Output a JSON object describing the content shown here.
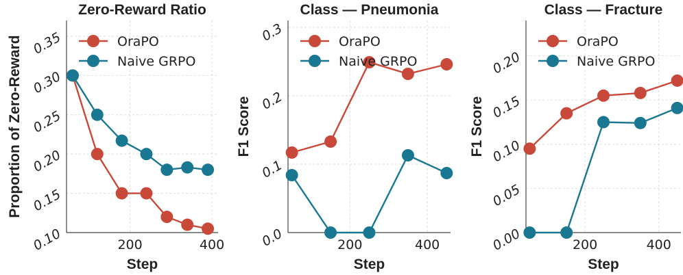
{
  "chart_data": [
    {
      "type": "line",
      "title": "Zero-Reward Ratio",
      "xlabel": "Step",
      "ylabel": "Proportion of Zero-Reward",
      "xlim": [
        45,
        415
      ],
      "ylim": [
        0.1,
        0.37
      ],
      "xticks": [
        200,
        400
      ],
      "yticks": [
        0.1,
        0.15,
        0.2,
        0.25,
        0.3,
        0.35
      ],
      "ytick_labels": [
        "0.10",
        "0.15",
        "0.20",
        "0.25",
        "0.30",
        "0.35"
      ],
      "grid": true,
      "legend_position": "top-left",
      "series": [
        {
          "name": "OraPO",
          "color": "#c8493a",
          "x": [
            60,
            120,
            180,
            240,
            290,
            340,
            390
          ],
          "y": [
            0.3,
            0.2,
            0.15,
            0.15,
            0.12,
            0.11,
            0.105
          ]
        },
        {
          "name": "Naive GRPO",
          "color": "#1a7791",
          "x": [
            60,
            120,
            180,
            240,
            290,
            340,
            390
          ],
          "y": [
            0.3,
            0.25,
            0.217,
            0.2,
            0.18,
            0.183,
            0.18
          ]
        }
      ]
    },
    {
      "type": "line",
      "title": "Class — Pneumonia",
      "xlabel": "Step",
      "ylabel": "F1 Score",
      "xlim": [
        40,
        460
      ],
      "ylim": [
        0.0,
        0.31
      ],
      "xticks": [
        200,
        400
      ],
      "yticks": [
        0.0,
        0.1,
        0.2,
        0.3
      ],
      "ytick_labels": [
        "0.0",
        "0.1",
        "0.2",
        "0.3"
      ],
      "grid": true,
      "legend_position": "top-left",
      "series": [
        {
          "name": "OraPO",
          "color": "#c8493a",
          "x": [
            50,
            150,
            250,
            350,
            450
          ],
          "y": [
            0.117,
            0.133,
            0.249,
            0.232,
            0.246
          ]
        },
        {
          "name": "Naive GRPO",
          "color": "#1a7791",
          "x": [
            50,
            150,
            250,
            350,
            450
          ],
          "y": [
            0.084,
            0.0,
            0.0,
            0.113,
            0.087
          ]
        }
      ]
    },
    {
      "type": "line",
      "title": "Class — Fracture",
      "xlabel": "Step",
      "ylabel": "F1 Score",
      "xlim": [
        40,
        460
      ],
      "ylim": [
        0.0,
        0.24
      ],
      "xticks": [
        200,
        400
      ],
      "yticks": [
        0.0,
        0.05,
        0.1,
        0.15,
        0.2
      ],
      "ytick_labels": [
        "0.00",
        "0.05",
        "0.10",
        "0.15",
        "0.20"
      ],
      "grid": true,
      "legend_position": "top-left",
      "series": [
        {
          "name": "OraPO",
          "color": "#c8493a",
          "x": [
            50,
            150,
            250,
            350,
            450
          ],
          "y": [
            0.095,
            0.135,
            0.155,
            0.158,
            0.172
          ]
        },
        {
          "name": "Naive GRPO",
          "color": "#1a7791",
          "x": [
            50,
            150,
            250,
            350,
            450
          ],
          "y": [
            0.0,
            0.0,
            0.125,
            0.124,
            0.141
          ]
        }
      ]
    }
  ]
}
